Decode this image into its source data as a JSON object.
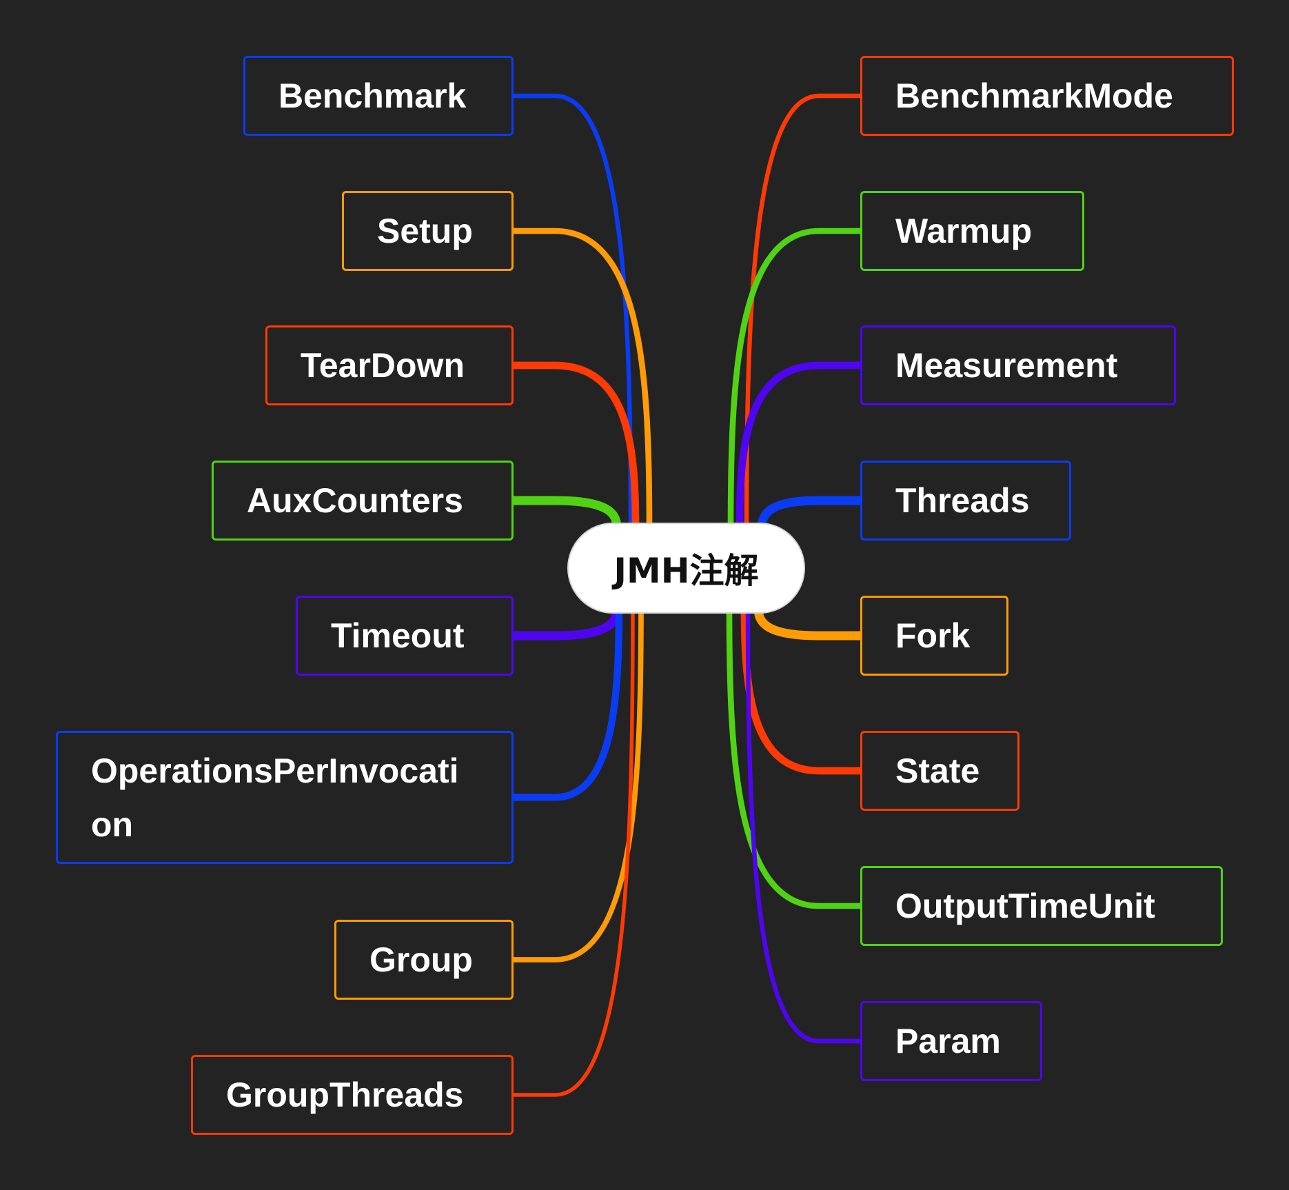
{
  "root": {
    "label": "JMH注解"
  },
  "colors": {
    "blue": "#0a3cf5",
    "orange": "#ff9b05",
    "red": "#ff3a05",
    "green": "#4fd312",
    "purple": "#4f05f2",
    "background": "#232323"
  },
  "left_nodes": [
    {
      "label": "Benchmark",
      "color": "blue"
    },
    {
      "label": "Setup",
      "color": "orange"
    },
    {
      "label": "TearDown",
      "color": "red"
    },
    {
      "label": "AuxCounters",
      "color": "green"
    },
    {
      "label": "Timeout",
      "color": "purple"
    },
    {
      "label": "OperationsPerInvocation",
      "color": "blue"
    },
    {
      "label": "Group",
      "color": "orange"
    },
    {
      "label": "GroupThreads",
      "color": "red"
    }
  ],
  "right_nodes": [
    {
      "label": "BenchmarkMode",
      "color": "red"
    },
    {
      "label": "Warmup",
      "color": "green"
    },
    {
      "label": "Measurement",
      "color": "purple"
    },
    {
      "label": "Threads",
      "color": "blue"
    },
    {
      "label": "Fork",
      "color": "orange"
    },
    {
      "label": "State",
      "color": "red"
    },
    {
      "label": "OutputTimeUnit",
      "color": "green"
    },
    {
      "label": "Param",
      "color": "purple"
    }
  ]
}
